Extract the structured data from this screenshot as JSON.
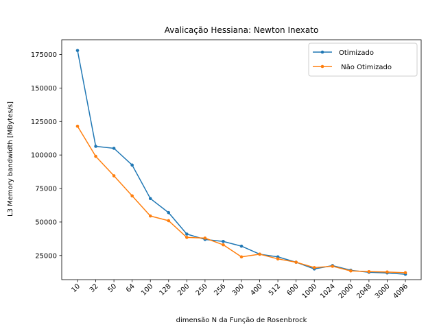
{
  "chart_data": {
    "type": "line",
    "title": "Avalicação Hessiana:  Newton Inexato",
    "xlabel": "dimensão N da Função de Rosenbrock",
    "ylabel": "L3 Memory bandwidth [MBytes/s]",
    "categories": [
      "10",
      "32",
      "50",
      "64",
      "100",
      "128",
      "200",
      "250",
      "256",
      "300",
      "400",
      "512",
      "600",
      "1000",
      "1024",
      "2000",
      "2048",
      "3000",
      "4096"
    ],
    "ylim": [
      7000,
      186000
    ],
    "yticks": [
      25000,
      50000,
      75000,
      100000,
      125000,
      150000,
      175000
    ],
    "grid": false,
    "legend_position": "top-right",
    "series": [
      {
        "name": "Otimizado",
        "color": "#1f77b4",
        "values": [
          178000,
          106500,
          105000,
          92500,
          67500,
          57000,
          41000,
          37000,
          35500,
          32000,
          26000,
          24000,
          20000,
          15000,
          17500,
          14000,
          12500,
          12000,
          11000
        ]
      },
      {
        "name": " Não Otimizado",
        "color": "#ff7f0e",
        "values": [
          121500,
          99000,
          84500,
          69500,
          54500,
          51000,
          38500,
          38000,
          33000,
          24000,
          26000,
          22500,
          20000,
          16000,
          17000,
          13500,
          13000,
          12700,
          12200
        ]
      }
    ]
  }
}
